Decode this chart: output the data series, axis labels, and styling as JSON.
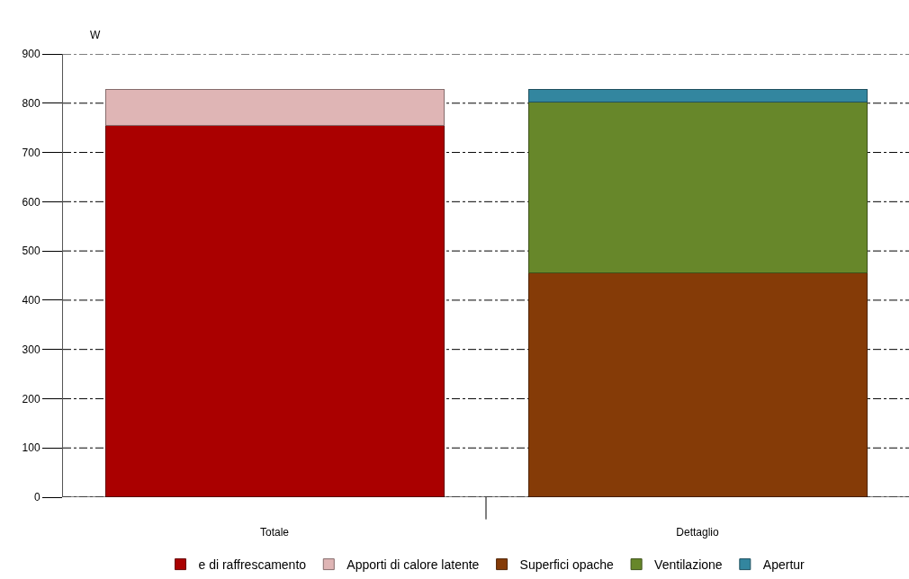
{
  "chart_data": {
    "type": "bar",
    "stacked": true,
    "ylabel": "W",
    "categories": [
      "Totale",
      "Dettaglio"
    ],
    "ylim": [
      0,
      900
    ],
    "yticks": [
      0,
      100,
      200,
      300,
      400,
      500,
      600,
      700,
      800,
      900
    ],
    "grid": "y",
    "legend": "bottom",
    "series": [
      {
        "name": "e di raffrescamento",
        "color": "#aa0000",
        "values": [
          755,
          null
        ]
      },
      {
        "name": "Apporti di calore latente",
        "color": "#dfb5b5",
        "values": [
          73,
          null
        ]
      },
      {
        "name": "Superfici opache",
        "color": "#853b07",
        "values": [
          null,
          455
        ]
      },
      {
        "name": "Ventilazione",
        "color": "#67872a",
        "values": [
          null,
          348
        ]
      },
      {
        "name": "Apertur",
        "color": "#33869f",
        "values": [
          null,
          25
        ]
      }
    ]
  }
}
